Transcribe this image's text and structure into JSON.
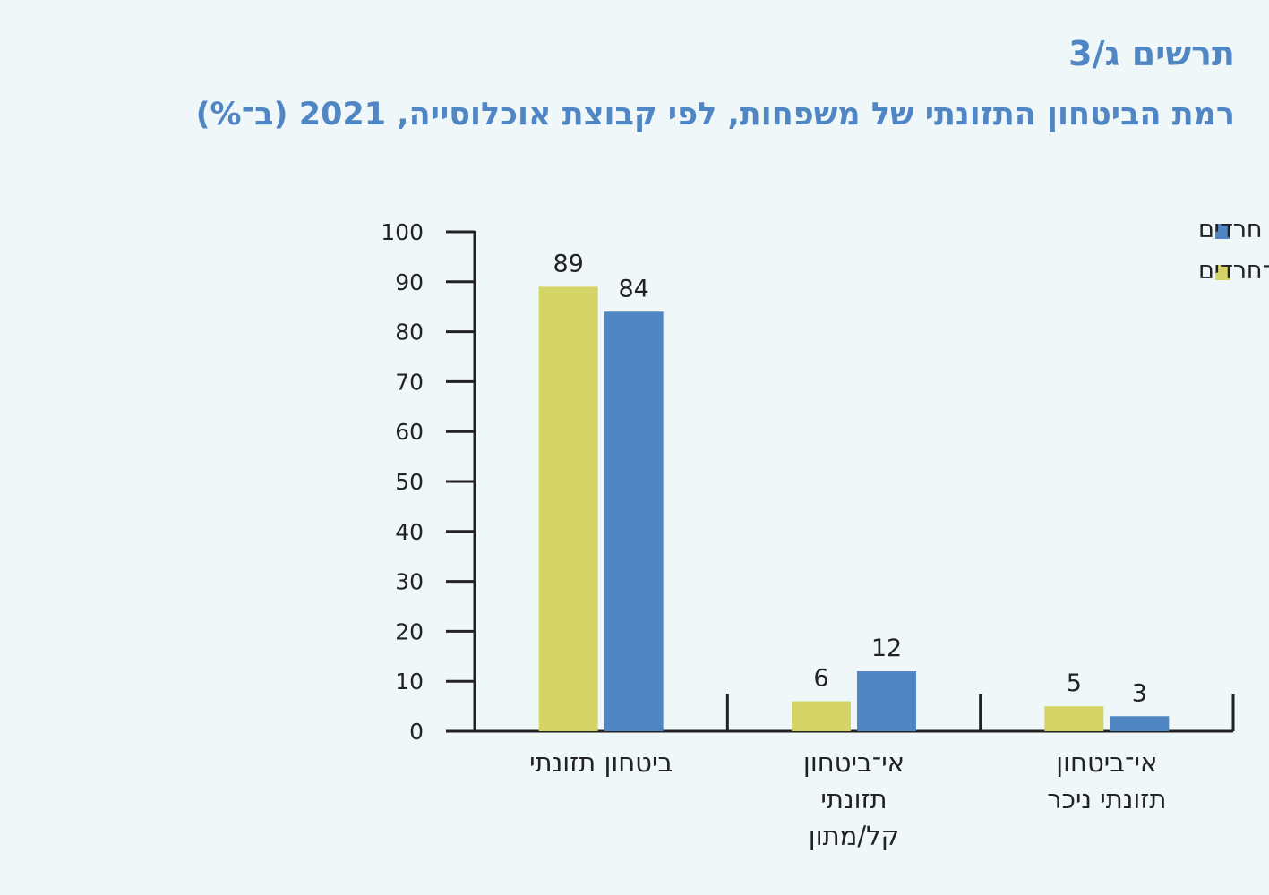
{
  "figure": {
    "number": "תרשים ג/3",
    "title": "רמת הביטחון התזונתי של משפחות, לפי קבוצת אוכלוסייה, 2021 (ב־%)"
  },
  "chart_data": {
    "type": "bar",
    "categories": [
      [
        "ביטחון תזונתי"
      ],
      [
        "אי־ביטחון",
        "תזונתי",
        "קל/מתון"
      ],
      [
        "אי־ביטחון",
        "תזונתי ניכר"
      ]
    ],
    "series": [
      {
        "name": "יהודים לא־חרדים",
        "color": "#d5d466",
        "values": [
          89,
          6,
          5
        ]
      },
      {
        "name": "חרדים",
        "color": "#4f86c3",
        "values": [
          84,
          12,
          3
        ]
      }
    ],
    "legend_order": [
      1,
      0
    ],
    "legend_position": "top-right",
    "ylim": [
      0,
      100
    ],
    "yticks": [
      0,
      10,
      20,
      30,
      40,
      50,
      60,
      70,
      80,
      90,
      100
    ],
    "grid": false
  }
}
